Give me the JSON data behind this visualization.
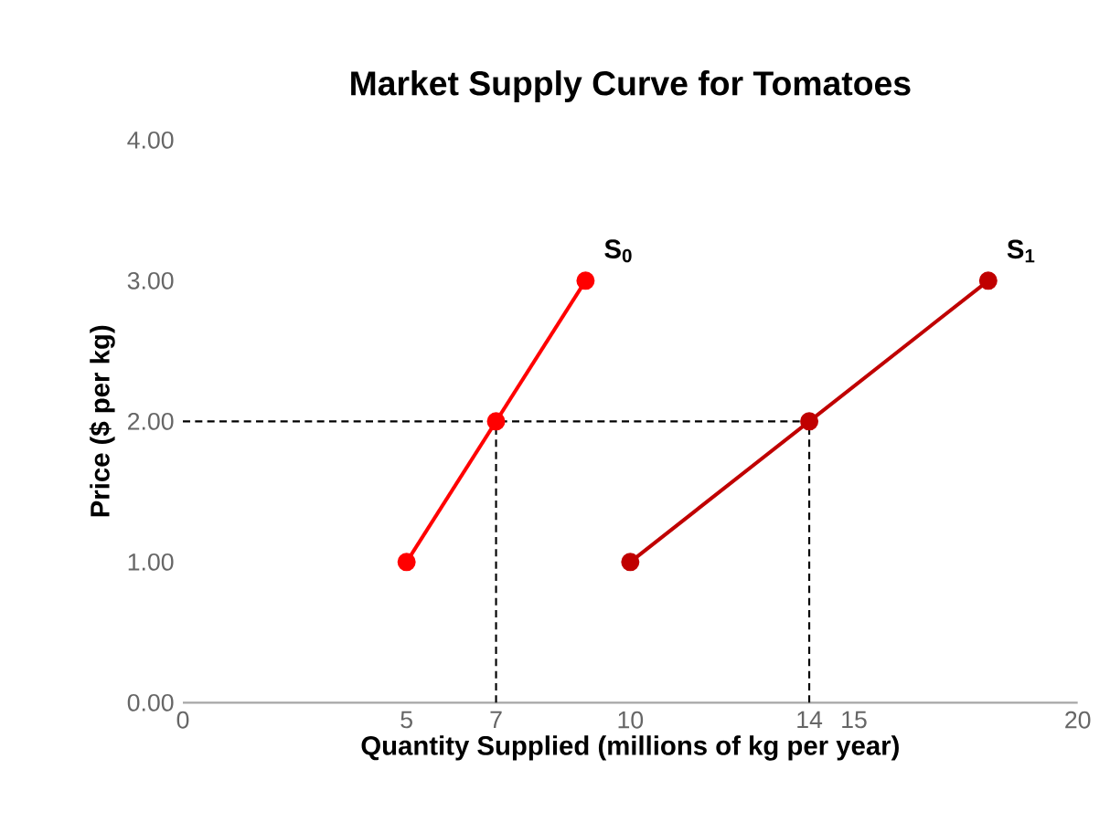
{
  "chart_data": {
    "type": "line",
    "title": "Market Supply Curve for Tomatoes",
    "xlabel": "Quantity Supplied (millions of kg per year)",
    "ylabel": "Price ($ per kg)",
    "xlim": [
      0,
      20
    ],
    "xticks": [
      0,
      5,
      7,
      10,
      14,
      15,
      20
    ],
    "ylim": [
      0,
      4
    ],
    "yticks": [
      {
        "value": 0,
        "label": "0.00"
      },
      {
        "value": 1,
        "label": "1.00"
      },
      {
        "value": 2,
        "label": "2.00"
      },
      {
        "value": 3,
        "label": "3.00"
      },
      {
        "value": 4,
        "label": "4.00"
      }
    ],
    "marker": "circle",
    "line_style": "solid",
    "series": [
      {
        "name": "S$_{0}$",
        "color": "#ff0000",
        "x": [
          5,
          7,
          9
        ],
        "values": [
          1,
          2,
          3
        ]
      },
      {
        "name": "S$_{1}$",
        "color": "#c00000",
        "x": [
          10,
          14,
          18
        ],
        "values": [
          1,
          2,
          3
        ]
      },
      {
        "color": "#000000",
        "x": [
          0,
          14
        ],
        "values": [
          2,
          2
        ],
        "marker": "none",
        "line_style": "dashed"
      },
      {
        "color": "#000000",
        "x": [
          7,
          7
        ],
        "values": [
          0,
          2
        ],
        "marker": "none",
        "line_style": "dashed"
      },
      {
        "color": "#000000",
        "x": [
          14,
          14
        ],
        "values": [
          0,
          2
        ],
        "marker": "none",
        "line_style": "dashed"
      }
    ]
  }
}
